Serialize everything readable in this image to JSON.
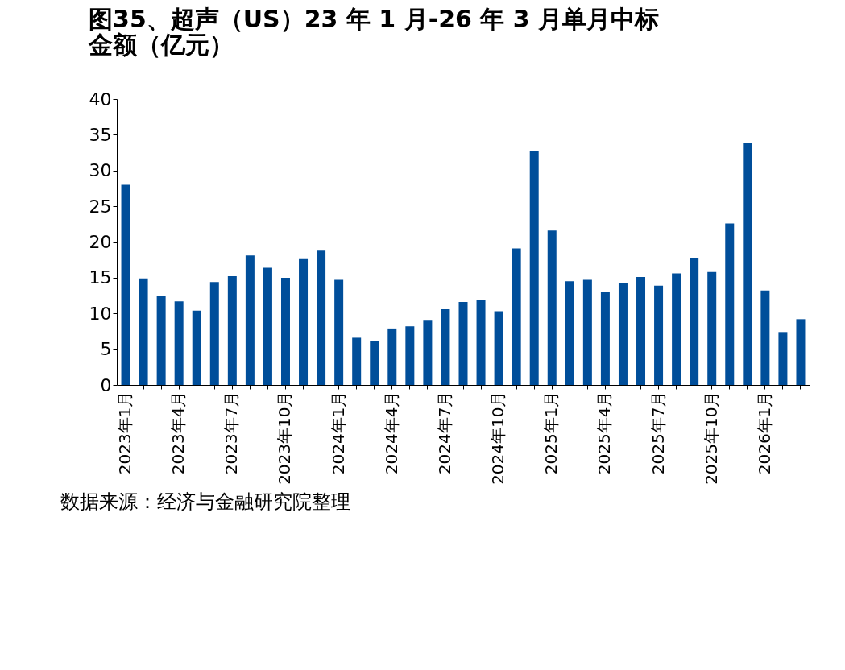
{
  "chart_data": {
    "type": "bar",
    "title": [
      "图35、超声（US）23 年 1 月-26 年 3 月单月中标",
      "金额（亿元）"
    ],
    "categories": [
      "2023年1月",
      null,
      null,
      "2023年4月",
      null,
      null,
      "2023年7月",
      null,
      null,
      "2023年10月",
      null,
      null,
      "2024年1月",
      null,
      null,
      "2024年4月",
      null,
      null,
      "2024年7月",
      null,
      null,
      "2024年10月",
      null,
      null,
      "2025年1月",
      null,
      null,
      "2025年4月",
      null,
      null,
      "2025年7月",
      null,
      null,
      "2025年10月",
      null,
      null,
      "2026年1月",
      null,
      null
    ],
    "values": [
      28,
      14.9,
      12.5,
      11.7,
      10.4,
      14.4,
      15.2,
      18.1,
      16.4,
      15,
      17.6,
      18.8,
      14.7,
      6.6,
      6.1,
      7.9,
      8.2,
      9.1,
      10.6,
      11.6,
      11.9,
      10.3,
      19.1,
      32.8,
      21.6,
      14.5,
      14.7,
      13,
      14.3,
      15.1,
      13.9,
      15.6,
      17.8,
      15.8,
      22.6,
      33.8,
      13.2,
      7.4,
      9.2
    ],
    "color": "#004e9a",
    "ylim": [
      0,
      40
    ],
    "yticks": [
      0,
      5,
      10,
      15,
      20,
      25,
      30,
      35,
      40
    ],
    "grid": false,
    "annotations": [
      "数据来源：经济与金融研究院整理"
    ]
  }
}
